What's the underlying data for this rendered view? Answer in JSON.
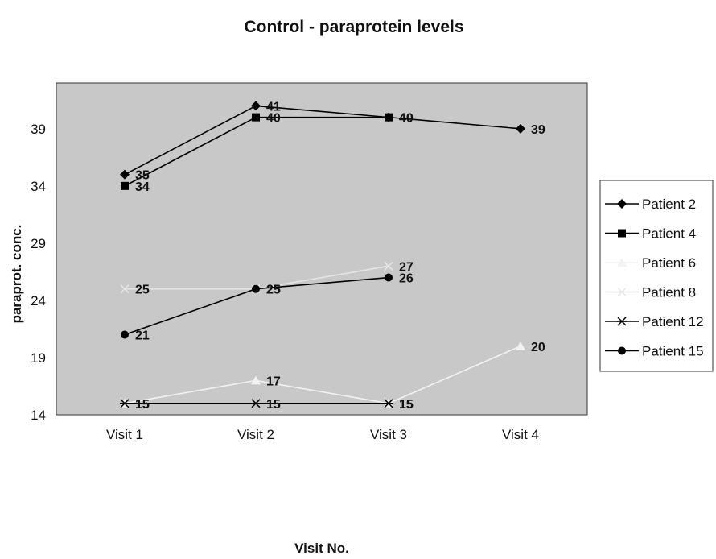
{
  "chart_data": {
    "type": "line",
    "title": "Control - paraprotein levels",
    "xlabel": "Visit No.",
    "ylabel": "paraprot. conc.",
    "categories": [
      "Visit 1",
      "Visit 2",
      "Visit 3",
      "Visit 4"
    ],
    "ylim": [
      14,
      43
    ],
    "yticks": [
      14,
      19,
      24,
      29,
      34,
      39
    ],
    "grid": false,
    "legend_position": "right",
    "plot_background": "#c8c8c8",
    "series": [
      {
        "name": "Patient 2",
        "values": [
          35,
          41,
          40,
          39
        ],
        "marker": "diamond",
        "color": "#000000"
      },
      {
        "name": "Patient 4",
        "values": [
          34,
          40,
          40,
          null
        ],
        "marker": "square",
        "color": "#000000"
      },
      {
        "name": "Patient 6",
        "values": [
          15,
          17,
          15,
          20
        ],
        "marker": "triangle",
        "color": "#f2f2f2"
      },
      {
        "name": "Patient 8",
        "values": [
          25,
          25,
          27,
          null
        ],
        "marker": "x",
        "color": "#e6e6e6"
      },
      {
        "name": "Patient 12",
        "values": [
          15,
          15,
          15,
          null
        ],
        "marker": "asterisk",
        "color": "#000000"
      },
      {
        "name": "Patient 15",
        "values": [
          21,
          25,
          26,
          null
        ],
        "marker": "circle",
        "color": "#000000"
      }
    ]
  }
}
